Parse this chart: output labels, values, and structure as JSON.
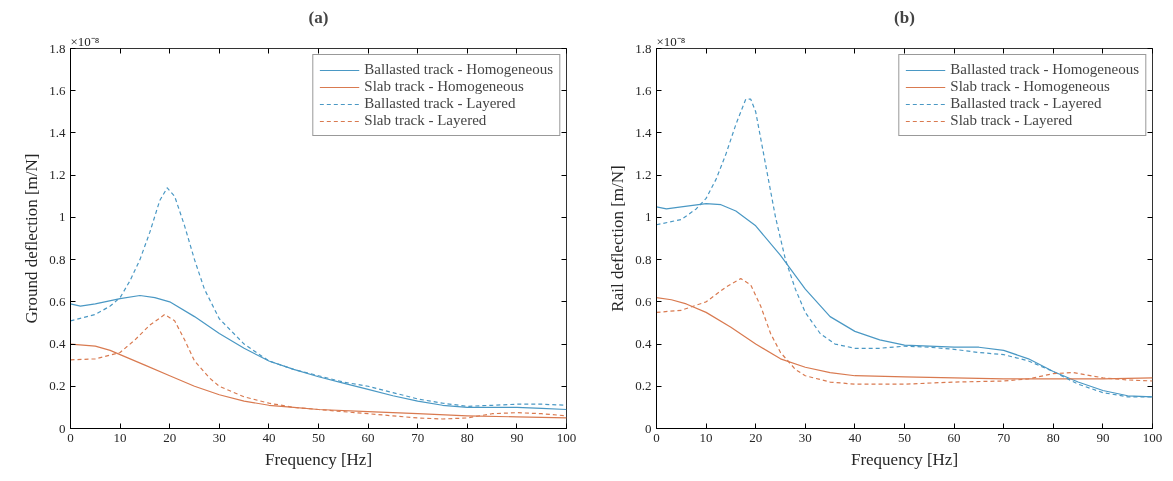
{
  "chart_data": [
    {
      "type": "line",
      "title": "(a)",
      "xlabel": "Frequency [Hz]",
      "ylabel": "Ground deflection [m/N]",
      "annotations": [
        "×10⁻⁸"
      ],
      "xlim": [
        0,
        100
      ],
      "xticks": [
        0,
        10,
        20,
        30,
        40,
        50,
        60,
        70,
        80,
        90,
        100
      ],
      "ylim": [
        0,
        1.8
      ],
      "yticks": [
        0,
        0.2,
        0.4,
        0.6,
        0.8,
        1,
        1.2,
        1.4,
        1.6,
        1.8
      ],
      "grid": false,
      "legend": "top right",
      "series": [
        {
          "name": "Ballasted track - Homogeneous",
          "color": "#4a98c4",
          "line_style": "solid",
          "x": [
            0,
            2,
            5,
            10,
            14,
            17,
            20,
            25,
            30,
            35,
            40,
            45,
            50,
            55,
            60,
            65,
            70,
            75,
            80,
            85,
            90,
            95,
            100
          ],
          "values": [
            0.59,
            0.58,
            0.59,
            0.615,
            0.63,
            0.62,
            0.6,
            0.53,
            0.45,
            0.38,
            0.32,
            0.28,
            0.245,
            0.215,
            0.185,
            0.155,
            0.13,
            0.11,
            0.1,
            0.1,
            0.1,
            0.095,
            0.09
          ]
        },
        {
          "name": "Slab track - Homogeneous",
          "color": "#d97a50",
          "line_style": "solid",
          "x": [
            0,
            5,
            8,
            10,
            15,
            20,
            25,
            30,
            35,
            40,
            45,
            50,
            60,
            70,
            80,
            90,
            100
          ],
          "values": [
            0.4,
            0.39,
            0.37,
            0.35,
            0.3,
            0.25,
            0.2,
            0.16,
            0.13,
            0.11,
            0.1,
            0.09,
            0.08,
            0.07,
            0.06,
            0.055,
            0.05
          ]
        },
        {
          "name": "Ballasted track - Layered",
          "color": "#4a98c4",
          "line_style": "dashed",
          "x": [
            0,
            5,
            8,
            10,
            12,
            14,
            16,
            18,
            19.5,
            21,
            23,
            25,
            27,
            30,
            35,
            40,
            45,
            50,
            55,
            60,
            65,
            70,
            75,
            80,
            85,
            90,
            95,
            100
          ],
          "values": [
            0.51,
            0.54,
            0.58,
            0.62,
            0.7,
            0.8,
            0.93,
            1.08,
            1.14,
            1.1,
            0.96,
            0.8,
            0.66,
            0.52,
            0.4,
            0.32,
            0.28,
            0.25,
            0.22,
            0.2,
            0.17,
            0.14,
            0.12,
            0.105,
            0.11,
            0.115,
            0.115,
            0.11
          ]
        },
        {
          "name": "Slab track - Layered",
          "color": "#d97a50",
          "line_style": "dashed",
          "x": [
            0,
            5,
            10,
            13,
            16,
            19,
            21,
            23,
            25,
            28,
            30,
            35,
            40,
            45,
            50,
            55,
            60,
            65,
            70,
            75,
            80,
            85,
            90,
            95,
            100
          ],
          "values": [
            0.325,
            0.33,
            0.36,
            0.42,
            0.49,
            0.54,
            0.51,
            0.42,
            0.32,
            0.24,
            0.2,
            0.15,
            0.12,
            0.1,
            0.09,
            0.08,
            0.07,
            0.06,
            0.05,
            0.045,
            0.05,
            0.07,
            0.075,
            0.07,
            0.06
          ]
        }
      ]
    },
    {
      "type": "line",
      "title": "(b)",
      "xlabel": "Frequency [Hz]",
      "ylabel": "Rail deflection [m/N]",
      "annotations": [
        "×10⁻⁸"
      ],
      "xlim": [
        0,
        100
      ],
      "xticks": [
        0,
        10,
        20,
        30,
        40,
        50,
        60,
        70,
        80,
        90,
        100
      ],
      "ylim": [
        0,
        1.8
      ],
      "yticks": [
        0,
        0.2,
        0.4,
        0.6,
        0.8,
        1,
        1.2,
        1.4,
        1.6,
        1.8
      ],
      "grid": false,
      "legend": "top right",
      "series": [
        {
          "name": "Ballasted track - Homogeneous",
          "color": "#4a98c4",
          "line_style": "solid",
          "x": [
            0,
            2,
            5,
            10,
            13,
            16,
            20,
            25,
            30,
            35,
            40,
            45,
            50,
            55,
            60,
            65,
            70,
            75,
            80,
            85,
            90,
            95,
            100
          ],
          "values": [
            1.05,
            1.04,
            1.05,
            1.065,
            1.06,
            1.03,
            0.96,
            0.82,
            0.66,
            0.53,
            0.46,
            0.42,
            0.395,
            0.39,
            0.385,
            0.385,
            0.37,
            0.33,
            0.27,
            0.22,
            0.18,
            0.155,
            0.15
          ]
        },
        {
          "name": "Slab track - Homogeneous",
          "color": "#d97a50",
          "line_style": "solid",
          "x": [
            0,
            3,
            6,
            10,
            15,
            20,
            25,
            30,
            35,
            40,
            50,
            60,
            70,
            80,
            90,
            100
          ],
          "values": [
            0.62,
            0.61,
            0.59,
            0.55,
            0.48,
            0.4,
            0.33,
            0.29,
            0.265,
            0.25,
            0.245,
            0.24,
            0.235,
            0.235,
            0.235,
            0.24
          ]
        },
        {
          "name": "Ballasted track - Layered",
          "color": "#4a98c4",
          "line_style": "dashed",
          "x": [
            0,
            5,
            8,
            10,
            12,
            14,
            16,
            18,
            19,
            20,
            22,
            24,
            26,
            28,
            30,
            33,
            36,
            40,
            45,
            50,
            55,
            60,
            65,
            70,
            75,
            80,
            85,
            90,
            95,
            100
          ],
          "values": [
            0.965,
            0.99,
            1.04,
            1.09,
            1.18,
            1.3,
            1.44,
            1.56,
            1.56,
            1.5,
            1.25,
            1.0,
            0.8,
            0.66,
            0.55,
            0.45,
            0.4,
            0.38,
            0.38,
            0.39,
            0.385,
            0.375,
            0.36,
            0.35,
            0.32,
            0.27,
            0.21,
            0.17,
            0.15,
            0.15
          ]
        },
        {
          "name": "Slab track - Layered",
          "color": "#d97a50",
          "line_style": "dashed",
          "x": [
            0,
            5,
            10,
            14,
            17,
            19,
            21,
            23,
            25,
            28,
            30,
            35,
            40,
            45,
            50,
            60,
            70,
            75,
            80,
            84,
            90,
            95,
            100
          ],
          "values": [
            0.55,
            0.56,
            0.6,
            0.67,
            0.71,
            0.68,
            0.58,
            0.45,
            0.36,
            0.28,
            0.25,
            0.22,
            0.21,
            0.21,
            0.21,
            0.22,
            0.225,
            0.235,
            0.26,
            0.265,
            0.24,
            0.23,
            0.225
          ]
        }
      ]
    }
  ]
}
